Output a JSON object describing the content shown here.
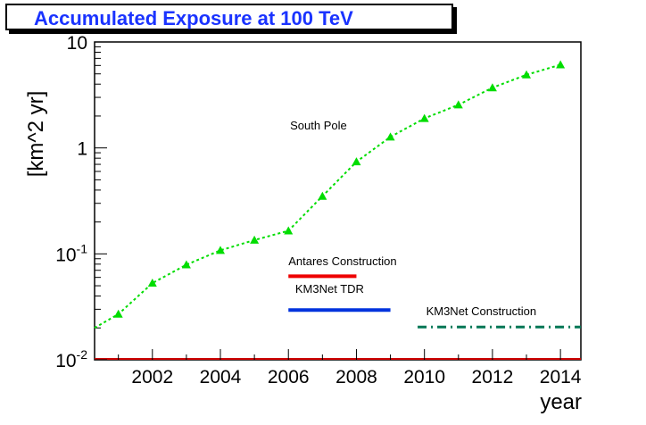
{
  "chart_data": {
    "type": "line",
    "title": "Accumulated Exposure at 100 TeV",
    "xlabel": "year",
    "ylabel": "[km^2 yr]",
    "yscale": "log",
    "xlim": [
      2000.3,
      2014.6
    ],
    "ylim": [
      0.01,
      10
    ],
    "x_ticks": [
      2002,
      2004,
      2006,
      2008,
      2010,
      2012,
      2014
    ],
    "x_tick_labels": [
      "2002",
      "2004",
      "2006",
      "2008",
      "2010",
      "2012",
      "2014"
    ],
    "y_ticks": [
      0.01,
      0.1,
      1,
      10
    ],
    "y_tick_labels": [
      {
        "base": "10",
        "exp": "-2"
      },
      {
        "base": "10",
        "exp": "-1"
      },
      {
        "base": "1",
        "exp": ""
      },
      {
        "base": "10",
        "exp": ""
      }
    ],
    "series": [
      {
        "name": "South Pole",
        "color": "#00dd00",
        "marker": "triangle",
        "x": [
          2000.3,
          2001,
          2002,
          2003,
          2004,
          2005,
          2006,
          2007,
          2008,
          2009,
          2010,
          2011,
          2012,
          2013,
          2014
        ],
        "y": [
          0.02,
          0.027,
          0.053,
          0.079,
          0.108,
          0.135,
          0.165,
          0.35,
          0.74,
          1.27,
          1.9,
          2.55,
          3.7,
          4.9,
          6.1
        ],
        "marker_from_index": 1
      }
    ],
    "annotations": [
      {
        "text": "South Pole",
        "x": 2006.05,
        "y": 1.5
      },
      {
        "text": "Antares Construction",
        "x": 2006.0,
        "y": 0.078
      },
      {
        "text": "KM3Net TDR",
        "x": 2006.2,
        "y": 0.043
      },
      {
        "text": "KM3Net Construction",
        "x": 2010.05,
        "y": 0.0263
      }
    ],
    "bars": [
      {
        "name": "Antares Construction",
        "x_start": 2006,
        "x_end": 2008,
        "y": 0.0615,
        "color": "#ee0000",
        "style": "solid"
      },
      {
        "name": "KM3Net TDR",
        "x_start": 2006,
        "x_end": 2009,
        "y": 0.0295,
        "color": "#0033dd",
        "style": "solid"
      },
      {
        "name": "KM3Net Construction",
        "x_start": 2009.8,
        "x_end": 2014.6,
        "y": 0.0204,
        "color": "#007755",
        "style": "dashdot"
      }
    ]
  }
}
